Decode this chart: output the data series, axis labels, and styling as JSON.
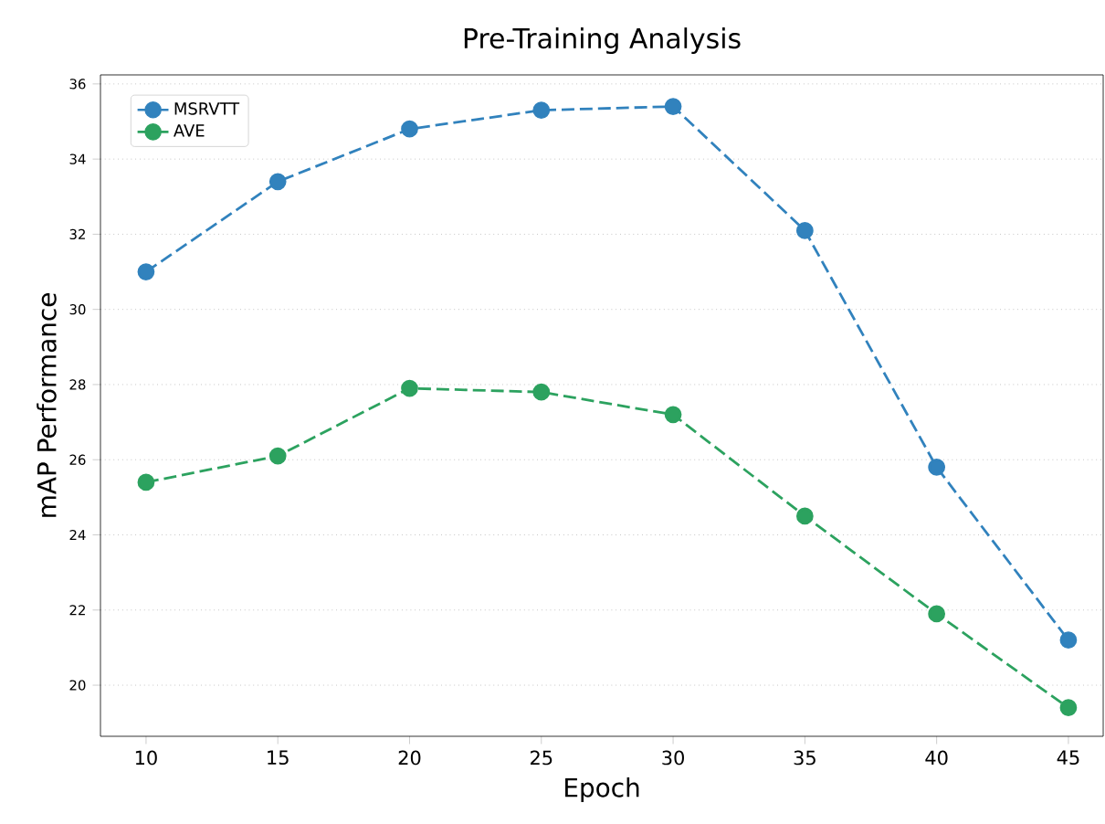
{
  "chart_data": {
    "type": "line",
    "title": "Pre-Training Analysis",
    "xlabel": "Epoch",
    "ylabel": "mAP Performance",
    "x": [
      10,
      15,
      20,
      25,
      30,
      35,
      40,
      45
    ],
    "series": [
      {
        "name": "MSRVTT",
        "color": "#3182bd",
        "values": [
          31.0,
          33.4,
          34.8,
          35.3,
          35.4,
          32.1,
          25.8,
          21.2
        ]
      },
      {
        "name": "AVE",
        "color": "#2ca25f",
        "values": [
          25.4,
          26.1,
          27.9,
          27.8,
          27.2,
          24.5,
          21.9,
          19.4
        ]
      }
    ],
    "xlim": [
      8.27,
      46.32
    ],
    "ylim": [
      18.64,
      36.24
    ],
    "xticks": [
      10,
      15,
      20,
      25,
      30,
      35,
      40,
      45
    ],
    "yticks": [
      20,
      22,
      24,
      26,
      28,
      30,
      32,
      34,
      36
    ],
    "grid": "y",
    "legend": "top left",
    "marker": "circle",
    "line_style": "dashed"
  }
}
